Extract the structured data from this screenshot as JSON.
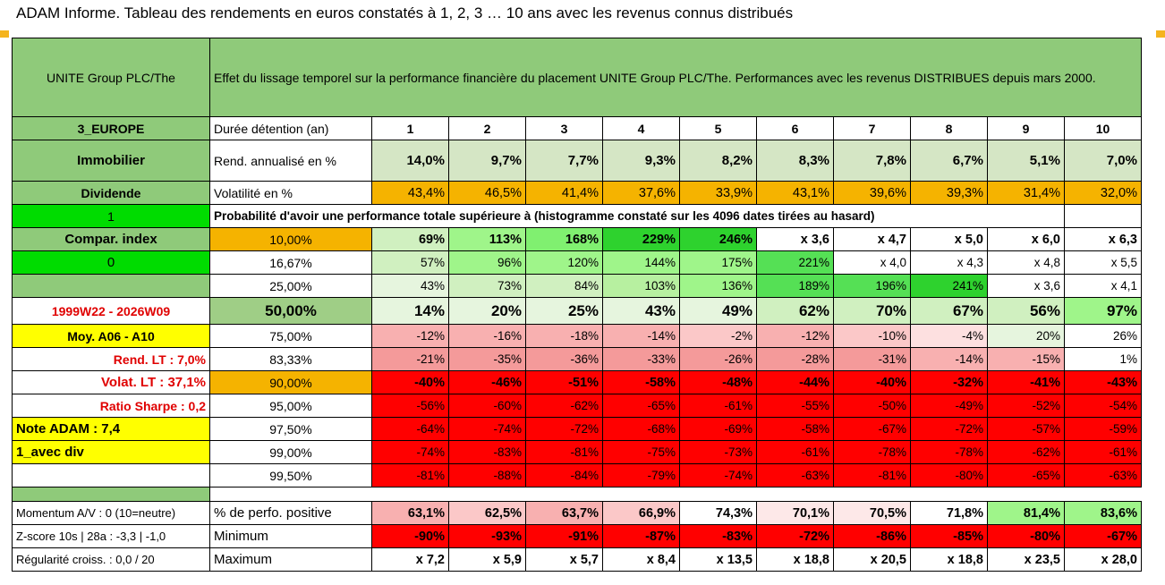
{
  "title": "ADAM Informe. Tableau des rendements en euros constatés à 1, 2, 3 … 10 ans avec les revenus connus distribués",
  "header": {
    "fund_name": "UNITE Group PLC/The",
    "description": "Effet du lissage temporel sur la performance financière du placement UNITE Group PLC/The. Performances avec les revenus DISTRIBUES depuis mars 2000."
  },
  "left": {
    "region": "3_EUROPE",
    "sector": "Immobilier",
    "income": "Dividende",
    "one": "1",
    "compar_index": "Compar. index",
    "zero": "0",
    "period": "1999W22 - 2026W09",
    "moy": "Moy. A06 - A10",
    "rend_lt": "Rend. LT :   7,0%",
    "volat_lt": "Volat. LT :   37,1%",
    "sharpe": "Ratio Sharpe :    0,2",
    "note": "Note ADAM : 7,4",
    "avec_div": "1_avec div",
    "momentum": "Momentum A/V : 0 (10=neutre)",
    "zscore": "Z-score 10s | 28a : -3,3 | -1,0",
    "regularite": "Régularité croiss. : 0,0 / 20"
  },
  "labels": {
    "duree": "Durée détention (an)",
    "rend": "Rend. annualisé en %",
    "vol": "Volatilité en %",
    "proba": "Probabilité d'avoir une performance totale supérieure à (histogramme constaté sur les 4096 dates tirées au hasard)",
    "pct_pos": "% de perfo. positive",
    "minimum": "Minimum",
    "maximum": "Maximum"
  },
  "years": [
    "1",
    "2",
    "3",
    "4",
    "5",
    "6",
    "7",
    "8",
    "9",
    "10"
  ],
  "rend": [
    "14,0%",
    "9,7%",
    "7,7%",
    "9,3%",
    "8,2%",
    "8,3%",
    "7,8%",
    "6,7%",
    "5,1%",
    "7,0%"
  ],
  "vol": [
    "43,4%",
    "46,5%",
    "41,4%",
    "37,6%",
    "33,9%",
    "43,1%",
    "39,6%",
    "39,3%",
    "31,4%",
    "32,0%"
  ],
  "quantiles": [
    {
      "label": "10,00%",
      "values": [
        "69%",
        "113%",
        "168%",
        "229%",
        "246%",
        "x 3,6",
        "x 4,7",
        "x 5,0",
        "x 6,0",
        "x 6,3"
      ]
    },
    {
      "label": "16,67%",
      "values": [
        "57%",
        "96%",
        "120%",
        "144%",
        "175%",
        "221%",
        "x 4,0",
        "x 4,3",
        "x 4,8",
        "x 5,5"
      ]
    },
    {
      "label": "25,00%",
      "values": [
        "43%",
        "73%",
        "84%",
        "103%",
        "136%",
        "189%",
        "196%",
        "241%",
        "x 3,6",
        "x 4,1"
      ]
    },
    {
      "label": "50,00%",
      "values": [
        "14%",
        "20%",
        "25%",
        "43%",
        "49%",
        "62%",
        "70%",
        "67%",
        "56%",
        "97%"
      ]
    },
    {
      "label": "75,00%",
      "values": [
        "-12%",
        "-16%",
        "-18%",
        "-14%",
        "-2%",
        "-12%",
        "-10%",
        "-4%",
        "20%",
        "26%"
      ]
    },
    {
      "label": "83,33%",
      "values": [
        "-21%",
        "-35%",
        "-36%",
        "-33%",
        "-26%",
        "-28%",
        "-31%",
        "-14%",
        "-15%",
        "1%"
      ]
    },
    {
      "label": "90,00%",
      "values": [
        "-40%",
        "-46%",
        "-51%",
        "-58%",
        "-48%",
        "-44%",
        "-40%",
        "-32%",
        "-41%",
        "-43%"
      ]
    },
    {
      "label": "95,00%",
      "values": [
        "-56%",
        "-60%",
        "-62%",
        "-65%",
        "-61%",
        "-55%",
        "-50%",
        "-49%",
        "-52%",
        "-54%"
      ]
    },
    {
      "label": "97,50%",
      "values": [
        "-64%",
        "-74%",
        "-72%",
        "-68%",
        "-69%",
        "-58%",
        "-67%",
        "-72%",
        "-57%",
        "-59%"
      ]
    },
    {
      "label": "99,00%",
      "values": [
        "-74%",
        "-83%",
        "-81%",
        "-75%",
        "-73%",
        "-61%",
        "-78%",
        "-78%",
        "-62%",
        "-61%"
      ]
    },
    {
      "label": "99,50%",
      "values": [
        "-81%",
        "-88%",
        "-84%",
        "-79%",
        "-74%",
        "-63%",
        "-81%",
        "-80%",
        "-65%",
        "-63%"
      ]
    }
  ],
  "pct_pos": [
    "63,1%",
    "62,5%",
    "63,7%",
    "66,9%",
    "74,3%",
    "70,1%",
    "70,5%",
    "71,8%",
    "81,4%",
    "83,6%"
  ],
  "minimum": [
    "-90%",
    "-93%",
    "-91%",
    "-87%",
    "-83%",
    "-72%",
    "-86%",
    "-85%",
    "-80%",
    "-67%"
  ],
  "maximum": [
    "x 7,2",
    "x 5,9",
    "x 5,7",
    "x 8,4",
    "x 13,5",
    "x 18,8",
    "x 20,5",
    "x 18,8",
    "x 23,5",
    "x 28,0"
  ],
  "colors": {
    "header_green": "#8fca7a",
    "light_green": "#d5e6c5",
    "orange": "#f5b300",
    "bright_green": "#00dc00",
    "yellow": "#ffff00",
    "red_text": "#e00000",
    "deep_red": "#ff0000"
  }
}
